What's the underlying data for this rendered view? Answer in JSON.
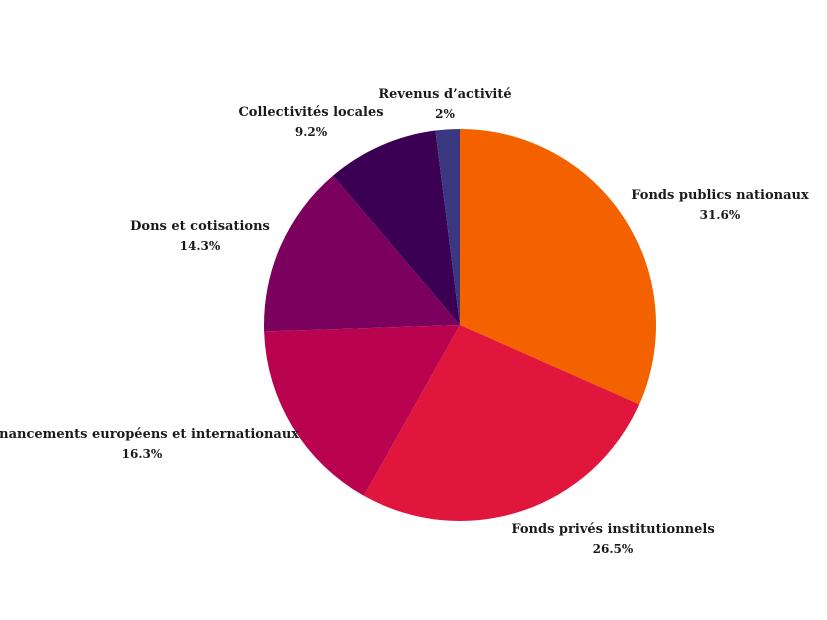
{
  "chart_data": {
    "type": "pie",
    "title": "",
    "slices": [
      {
        "label": "Fonds publics nationaux",
        "value": 31.6,
        "display": "31.6%",
        "color": "#f46200"
      },
      {
        "label": "Fonds privés institutionnels",
        "value": 26.5,
        "display": "26.5%",
        "color": "#e1163d"
      },
      {
        "label": "Financements européens et internationaux",
        "value": 16.3,
        "display": "16.3%",
        "color": "#b9034f"
      },
      {
        "label": "Dons et cotisations",
        "value": 14.3,
        "display": "14.3%",
        "color": "#7c005d"
      },
      {
        "label": "Collectivités locales",
        "value": 9.2,
        "display": "9.2%",
        "color": "#3b0054"
      },
      {
        "label": "Revenus d’activité",
        "value": 2,
        "display": "2%",
        "color": "#3a3680"
      }
    ],
    "legend": "none",
    "start_angle": "top",
    "direction": "clockwise"
  }
}
